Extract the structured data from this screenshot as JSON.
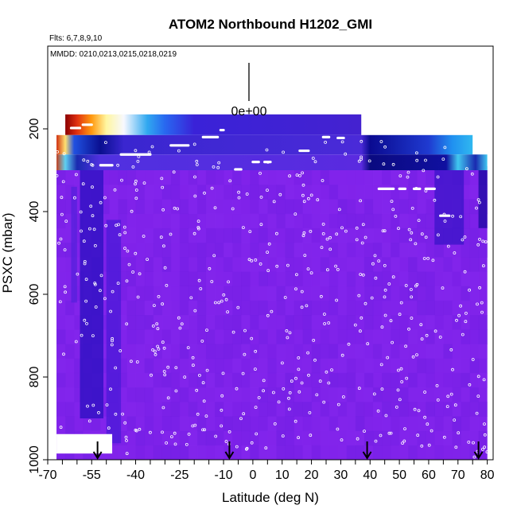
{
  "chart_data": {
    "type": "heatmap",
    "title": "ATOM2 Northbound H1202_GMI",
    "flights_note": "Flts: 6,7,8,9,10",
    "dates_note": "MMDD: 0210,0213,0215,0218,0219",
    "xlabel": "Latitude (deg N)",
    "ylabel": "PSXC (mbar)",
    "xlim": [
      -70,
      82
    ],
    "ylim": [
      1000,
      0
    ],
    "x_ticks": [
      -70,
      -55,
      -40,
      -25,
      -10,
      0,
      10,
      20,
      30,
      40,
      50,
      60,
      70,
      80
    ],
    "y_ticks": [
      200,
      400,
      600,
      800,
      1000
    ],
    "scale_marker_label": "0e+00",
    "base_color": "#7f22ea",
    "upper_bands": [
      {
        "x0": -64,
        "x1": 37,
        "p0": 165,
        "p1": 215,
        "stops": [
          {
            "x": -64,
            "color": "#8b0000"
          },
          {
            "x": -60,
            "color": "#e03010"
          },
          {
            "x": -55,
            "color": "#ff9a10"
          },
          {
            "x": -50,
            "color": "#fff6a0"
          },
          {
            "x": -44,
            "color": "#f7f8ff"
          },
          {
            "x": -36,
            "color": "#30a8f0"
          },
          {
            "x": -30,
            "color": "#2868f0"
          },
          {
            "x": -20,
            "color": "#3a22d8"
          },
          {
            "x": 37,
            "color": "#4422d0"
          }
        ]
      },
      {
        "x0": -67,
        "x1": 75,
        "p0": 215,
        "p1": 262,
        "stops": [
          {
            "x": -67,
            "color": "#d03010"
          },
          {
            "x": -64,
            "color": "#ffe070"
          },
          {
            "x": -61,
            "color": "#2050e0"
          },
          {
            "x": -52,
            "color": "#0a0f90"
          },
          {
            "x": -44,
            "color": "#3a26d0"
          },
          {
            "x": 37,
            "color": "#4a2ad8"
          },
          {
            "x": 40,
            "color": "#0a0a90"
          },
          {
            "x": 60,
            "color": "#1f3ad0"
          },
          {
            "x": 68,
            "color": "#2090f0"
          },
          {
            "x": 75,
            "color": "#30b8f0"
          }
        ]
      },
      {
        "x0": -67,
        "x1": 80,
        "p0": 262,
        "p1": 300,
        "stops": [
          {
            "x": -67,
            "color": "#c04020"
          },
          {
            "x": -64,
            "color": "#5fd0f0"
          },
          {
            "x": -60,
            "color": "#1a2ab0"
          },
          {
            "x": -52,
            "color": "#5030e0"
          },
          {
            "x": 37,
            "color": "#5a2ae0"
          },
          {
            "x": 40,
            "color": "#0a0a80"
          },
          {
            "x": 66,
            "color": "#1010a0"
          },
          {
            "x": 70,
            "color": "#40c8f0"
          },
          {
            "x": 76,
            "color": "#1a2ab0"
          },
          {
            "x": 80,
            "color": "#40c8f0"
          }
        ]
      }
    ],
    "dark_streaks": [
      {
        "x0": -59,
        "x1": -51,
        "p0": 300,
        "p1": 900,
        "color": "#2a10c0"
      },
      {
        "x0": -50,
        "x1": -45,
        "p0": 420,
        "p1": 960,
        "color": "#4a1ad8"
      },
      {
        "x0": 62,
        "x1": 72,
        "p0": 300,
        "p1": 480,
        "color": "#3a14c8"
      },
      {
        "x0": 77,
        "x1": 80,
        "p0": 290,
        "p1": 440,
        "color": "#1a0aa0"
      },
      {
        "x0": -62,
        "x1": -60,
        "p0": 340,
        "p1": 620,
        "color": "#5520dc"
      }
    ],
    "white_gaps": [
      {
        "x0": -67,
        "x1": -48,
        "p0": 938,
        "p1": 985
      }
    ],
    "tropopause_segments": [
      {
        "x0": -62,
        "x1": -59,
        "p": 198
      },
      {
        "x0": -58,
        "x1": -55,
        "p": 190
      },
      {
        "x0": -52,
        "x1": -48,
        "p": 288
      },
      {
        "x0": -45,
        "x1": -35,
        "p": 262
      },
      {
        "x0": -28,
        "x1": -22,
        "p": 240
      },
      {
        "x0": -17,
        "x1": -12,
        "p": 220
      },
      {
        "x0": -11,
        "x1": -10,
        "p": 203
      },
      {
        "x0": -6,
        "x1": -4,
        "p": 298
      },
      {
        "x0": 0,
        "x1": 2,
        "p": 280
      },
      {
        "x0": 4,
        "x1": 6,
        "p": 280
      },
      {
        "x0": 16,
        "x1": 19,
        "p": 253
      },
      {
        "x0": 24,
        "x1": 26,
        "p": 220
      },
      {
        "x0": 29,
        "x1": 31,
        "p": 222
      },
      {
        "x0": 43,
        "x1": 48,
        "p": 345
      },
      {
        "x0": 50,
        "x1": 52,
        "p": 345
      },
      {
        "x0": 55,
        "x1": 57,
        "p": 345
      },
      {
        "x0": 59,
        "x1": 62,
        "p": 345
      },
      {
        "x0": 64,
        "x1": 67,
        "p": 410
      }
    ],
    "profile_arrows": [
      -53,
      -8,
      39,
      77
    ]
  }
}
